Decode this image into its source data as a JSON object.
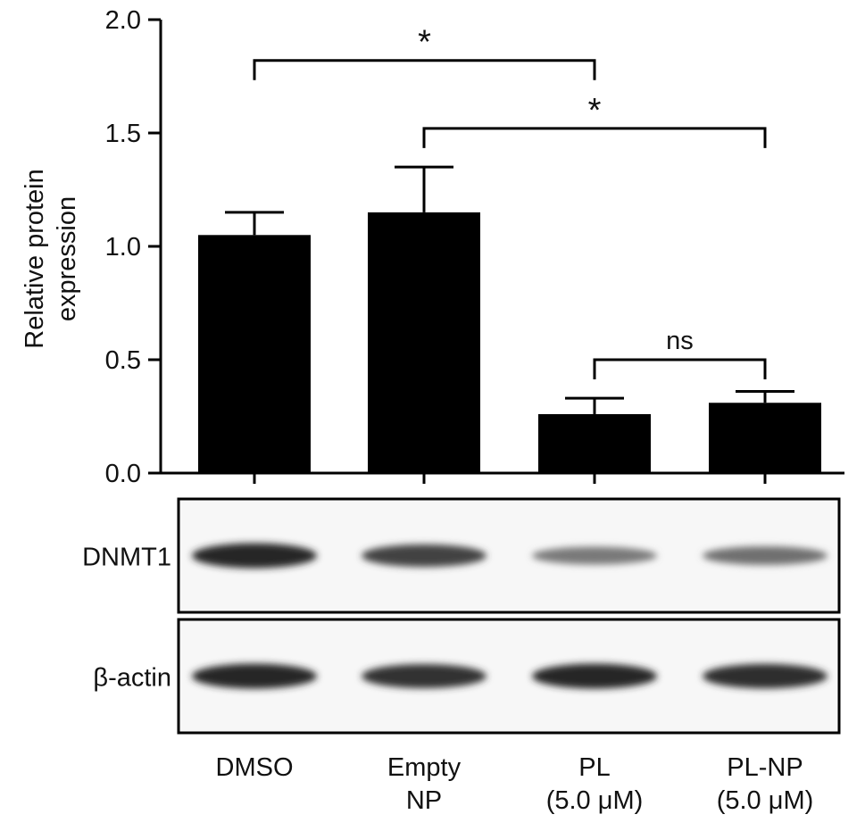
{
  "chart_data": {
    "type": "bar",
    "ylabel_lines": [
      "Relative protein",
      "expression"
    ],
    "yticks": [
      "0.0",
      "0.5",
      "1.0",
      "1.5",
      "2.0"
    ],
    "ylim": [
      0,
      2.0
    ],
    "categories": [
      "DMSO",
      "Empty NP",
      "PL (5.0 μM)",
      "PL-NP (5.0 μM)"
    ],
    "category_lines": [
      [
        "DMSO"
      ],
      [
        "Empty",
        "NP"
      ],
      [
        "PL",
        "(5.0 μM)"
      ],
      [
        "PL-NP",
        "(5.0 μM)"
      ]
    ],
    "values": [
      1.05,
      1.15,
      0.26,
      0.31
    ],
    "errors": [
      0.1,
      0.2,
      0.07,
      0.05
    ],
    "bar_color": "#000000",
    "significance": [
      {
        "from": 0,
        "to": 2,
        "label": "*",
        "y": 1.82
      },
      {
        "from": 1,
        "to": 3,
        "label": "*",
        "y": 1.52
      },
      {
        "from": 2,
        "to": 3,
        "label": "ns",
        "y": 0.5
      }
    ],
    "blots": [
      {
        "label": "DNMT1",
        "band_intensity": [
          1.0,
          0.85,
          0.55,
          0.6
        ]
      },
      {
        "label": "β-actin",
        "band_intensity": [
          1.0,
          0.95,
          1.0,
          0.97
        ]
      }
    ]
  }
}
